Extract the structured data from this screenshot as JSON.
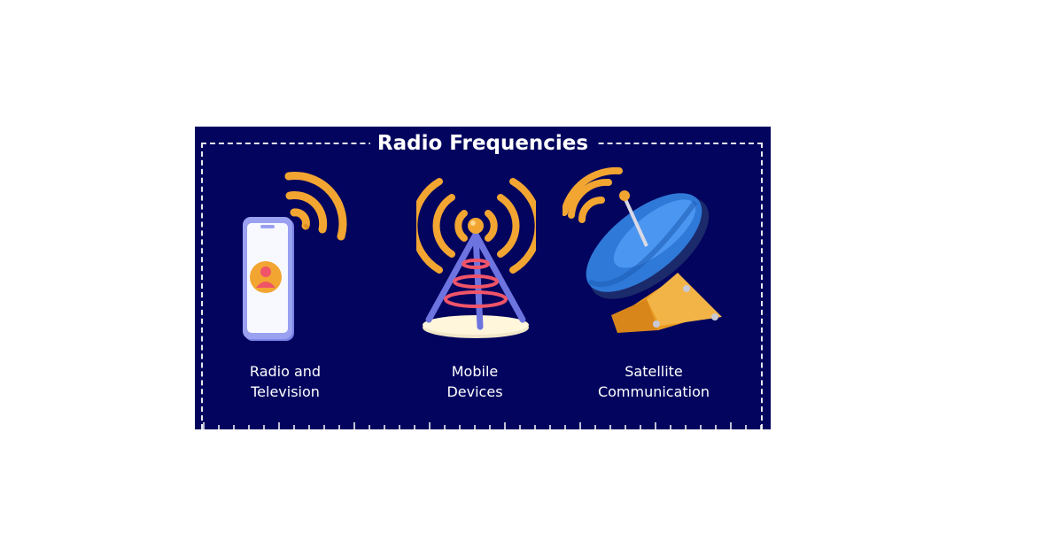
{
  "title": "Radio Frequencies",
  "items": [
    {
      "icon": "smartphone-signal-icon",
      "label_line1": "Radio and",
      "label_line2": "Television"
    },
    {
      "icon": "radio-tower-icon",
      "label_line1": "Mobile",
      "label_line2": "Devices"
    },
    {
      "icon": "satellite-dish-icon",
      "label_line1": "Satellite",
      "label_line2": "Communication"
    }
  ],
  "colors": {
    "background": "#02045e",
    "accent_orange": "#f2a531",
    "tower_blue": "#6d74e0",
    "tower_red": "#f05468",
    "dish_blue": "#2f79d8"
  }
}
